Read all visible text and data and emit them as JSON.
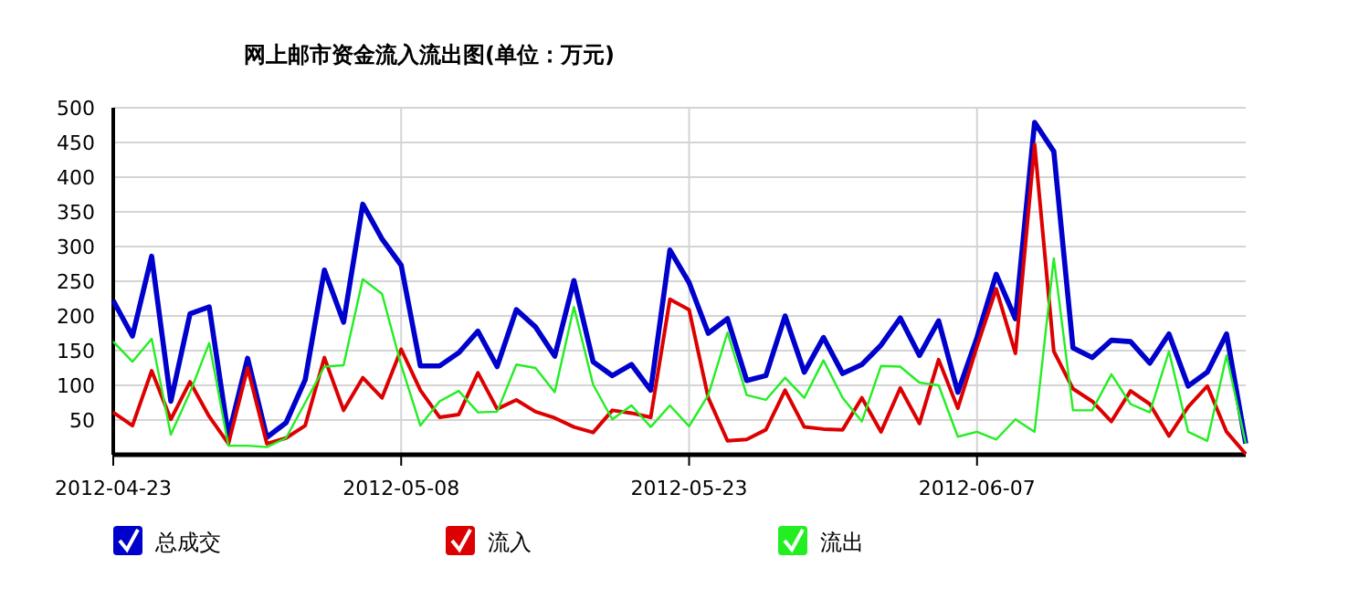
{
  "chart_data": {
    "type": "line",
    "title": "网上邮市资金流入流出图(单位：万元)",
    "x": [
      "2012-04-23",
      "2012-04-24",
      "2012-04-25",
      "2012-04-26",
      "2012-04-27",
      "2012-04-28",
      "2012-04-29",
      "2012-04-30",
      "2012-05-01",
      "2012-05-02",
      "2012-05-03",
      "2012-05-04",
      "2012-05-05",
      "2012-05-06",
      "2012-05-07",
      "2012-05-08",
      "2012-05-09",
      "2012-05-10",
      "2012-05-11",
      "2012-05-12",
      "2012-05-13",
      "2012-05-14",
      "2012-05-15",
      "2012-05-16",
      "2012-05-17",
      "2012-05-18",
      "2012-05-19",
      "2012-05-20",
      "2012-05-21",
      "2012-05-22",
      "2012-05-23",
      "2012-05-24",
      "2012-05-25",
      "2012-05-26",
      "2012-05-27",
      "2012-05-28",
      "2012-05-29",
      "2012-05-30",
      "2012-05-31",
      "2012-06-01",
      "2012-06-02",
      "2012-06-03",
      "2012-06-04",
      "2012-06-05",
      "2012-06-06",
      "2012-06-07",
      "2012-06-08",
      "2012-06-09",
      "2012-06-10",
      "2012-06-11",
      "2012-06-12",
      "2012-06-13",
      "2012-06-14",
      "2012-06-15",
      "2012-06-16",
      "2012-06-17",
      "2012-06-18",
      "2012-06-19",
      "2012-06-20",
      "2012-06-21"
    ],
    "series": [
      {
        "name": "总成交",
        "color": "#0000cc",
        "values": [
          222,
          171,
          286,
          77,
          203,
          213,
          27,
          139,
          25,
          46,
          108,
          266,
          191,
          361,
          311,
          273,
          128,
          128,
          147,
          178,
          127,
          209,
          184,
          142,
          251,
          134,
          114,
          130,
          93,
          295,
          248,
          175,
          196,
          107,
          114,
          200,
          119,
          169,
          117,
          130,
          158,
          197,
          143,
          193,
          90,
          169,
          260,
          196,
          479,
          437,
          154,
          140,
          165,
          163,
          132,
          174,
          99,
          119,
          174,
          16
        ]
      },
      {
        "name": "流入",
        "color": "#dd0000",
        "values": [
          61,
          42,
          121,
          51,
          105,
          55,
          16,
          125,
          16,
          24,
          42,
          140,
          64,
          111,
          82,
          152,
          93,
          54,
          58,
          118,
          66,
          79,
          62,
          53,
          40,
          32,
          64,
          60,
          54,
          224,
          209,
          82,
          20,
          22,
          36,
          93,
          40,
          37,
          36,
          82,
          33,
          96,
          45,
          137,
          67,
          156,
          239,
          146,
          447,
          149,
          95,
          77,
          48,
          92,
          73,
          27,
          69,
          99,
          33,
          1
        ]
      },
      {
        "name": "流出",
        "color": "#22ee22",
        "values": [
          163,
          134,
          167,
          29,
          90,
          161,
          13,
          13,
          11,
          24,
          75,
          127,
          129,
          253,
          232,
          129,
          42,
          77,
          92,
          61,
          62,
          130,
          125,
          90,
          213,
          101,
          51,
          71,
          40,
          71,
          41,
          86,
          176,
          86,
          79,
          111,
          82,
          136,
          82,
          48,
          128,
          127,
          104,
          100,
          26,
          33,
          22,
          51,
          33,
          283,
          64,
          64,
          116,
          73,
          61,
          149,
          33,
          20,
          143,
          16
        ]
      }
    ],
    "xlim": [
      "2012-04-23",
      "2012-06-21"
    ],
    "xticks": [
      "2012-04-23",
      "2012-05-08",
      "2012-05-23",
      "2012-06-07"
    ],
    "ylim": [
      0,
      500
    ],
    "yticks": [
      50,
      100,
      150,
      200,
      250,
      300,
      350,
      400,
      450,
      500
    ],
    "grid": true,
    "legend": "bottom",
    "marker": "none",
    "line_style": "solid"
  }
}
